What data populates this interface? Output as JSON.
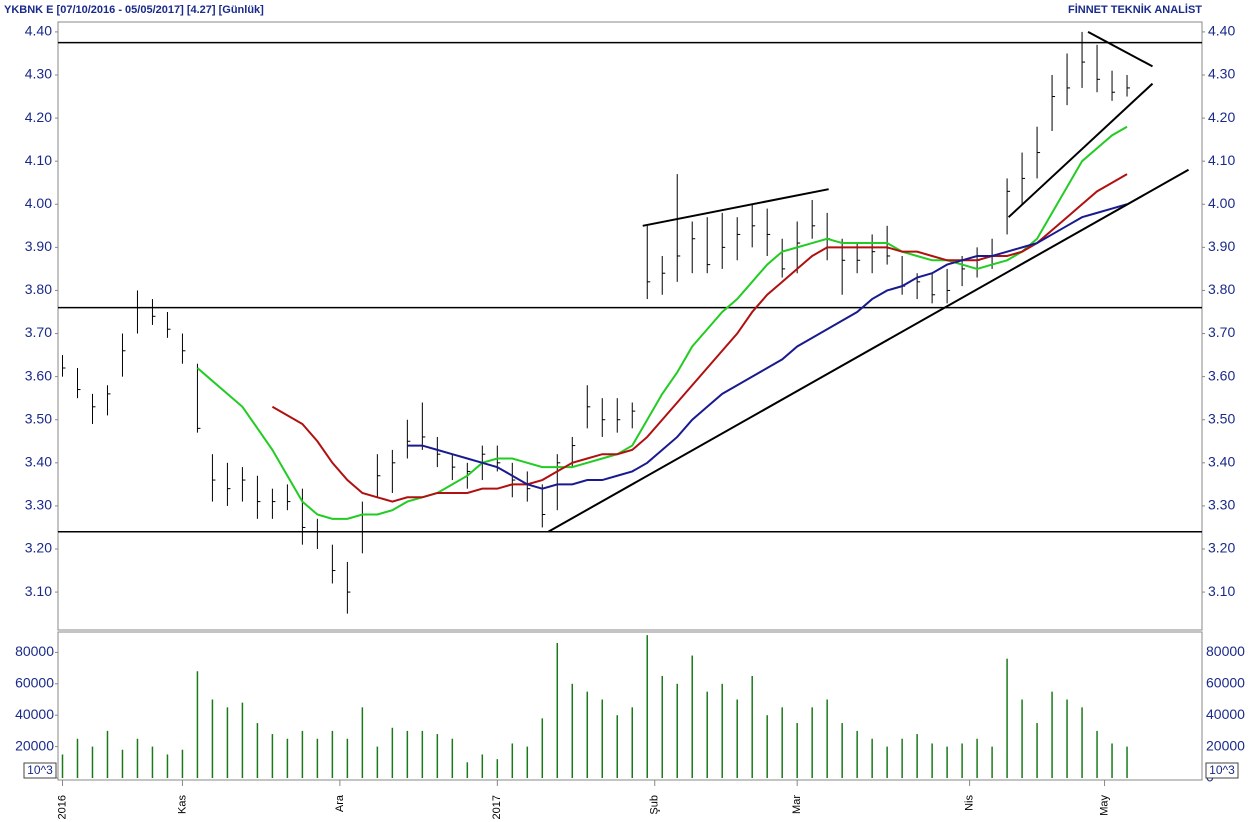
{
  "header": {
    "title": "YKBNK E [07/10/2016 - 05/05/2017] [4.27] [Günlük]",
    "source": "FİNNET TEKNİK ANALİST"
  },
  "chart_data": [
    {
      "type": "ohlc",
      "xlim": [
        -0.3,
        76
      ],
      "xticks": [
        {
          "value": 0,
          "label": "2016"
        },
        {
          "value": 8,
          "label": "Kas"
        },
        {
          "value": 18.5,
          "label": "Ara"
        },
        {
          "value": 29,
          "label": "2017"
        },
        {
          "value": 39.5,
          "label": "Şub"
        },
        {
          "value": 49,
          "label": "Mar"
        },
        {
          "value": 60.5,
          "label": "Nis"
        },
        {
          "value": 69.5,
          "label": "May"
        }
      ],
      "ylim": [
        3.012,
        4.423
      ],
      "yticks": [
        {
          "value": 3.1,
          "label": "3.10"
        },
        {
          "value": 3.2,
          "label": "3.20"
        },
        {
          "value": 3.3,
          "label": "3.30"
        },
        {
          "value": 3.4,
          "label": "3.40"
        },
        {
          "value": 3.5,
          "label": "3.50"
        },
        {
          "value": 3.6,
          "label": "3.60"
        },
        {
          "value": 3.7,
          "label": "3.70"
        },
        {
          "value": 3.8,
          "label": "3.80"
        },
        {
          "value": 3.9,
          "label": "3.90"
        },
        {
          "value": 4.0,
          "label": "4.00"
        },
        {
          "value": 4.1,
          "label": "4.10"
        },
        {
          "value": 4.2,
          "label": "4.20"
        },
        {
          "value": 4.3,
          "label": "4.30"
        },
        {
          "value": 4.4,
          "label": "4.40"
        }
      ],
      "bar_color": "#000000",
      "high": [
        3.65,
        3.62,
        3.56,
        3.58,
        3.7,
        3.8,
        3.78,
        3.75,
        3.7,
        3.63,
        3.42,
        3.4,
        3.39,
        3.37,
        3.34,
        3.35,
        3.34,
        3.27,
        3.21,
        3.17,
        3.31,
        3.42,
        3.43,
        3.5,
        3.54,
        3.46,
        3.42,
        3.4,
        3.44,
        3.44,
        3.4,
        3.38,
        3.35,
        3.42,
        3.46,
        3.58,
        3.55,
        3.55,
        3.54,
        3.95,
        3.88,
        4.07,
        3.96,
        3.97,
        3.98,
        3.97,
        4.0,
        3.99,
        3.92,
        3.96,
        4.01,
        3.98,
        3.92,
        3.91,
        3.93,
        3.95,
        3.88,
        3.84,
        3.84,
        3.85,
        3.88,
        3.9,
        3.92,
        4.06,
        4.12,
        4.18,
        4.3,
        4.35,
        4.4,
        4.37,
        4.31,
        4.3
      ],
      "low": [
        3.6,
        3.55,
        3.49,
        3.51,
        3.6,
        3.7,
        3.72,
        3.69,
        3.63,
        3.47,
        3.31,
        3.3,
        3.31,
        3.27,
        3.27,
        3.29,
        3.21,
        3.2,
        3.12,
        3.05,
        3.19,
        3.32,
        3.33,
        3.41,
        3.43,
        3.39,
        3.36,
        3.34,
        3.36,
        3.38,
        3.32,
        3.31,
        3.25,
        3.29,
        3.39,
        3.48,
        3.46,
        3.47,
        3.48,
        3.78,
        3.79,
        3.82,
        3.84,
        3.84,
        3.85,
        3.87,
        3.9,
        3.88,
        3.83,
        3.84,
        3.92,
        3.87,
        3.79,
        3.84,
        3.84,
        3.86,
        3.79,
        3.78,
        3.77,
        3.77,
        3.81,
        3.83,
        3.85,
        3.93,
        4.0,
        4.06,
        4.17,
        4.23,
        4.27,
        4.26,
        4.24,
        4.25
      ],
      "close": [
        3.62,
        3.57,
        3.53,
        3.56,
        3.66,
        3.76,
        3.74,
        3.71,
        3.66,
        3.48,
        3.36,
        3.34,
        3.36,
        3.31,
        3.31,
        3.31,
        3.25,
        3.24,
        3.15,
        3.1,
        3.28,
        3.37,
        3.4,
        3.45,
        3.46,
        3.42,
        3.39,
        3.38,
        3.42,
        3.4,
        3.36,
        3.34,
        3.28,
        3.4,
        3.44,
        3.53,
        3.5,
        3.5,
        3.52,
        3.82,
        3.84,
        3.88,
        3.92,
        3.86,
        3.9,
        3.93,
        3.95,
        3.93,
        3.85,
        3.91,
        3.95,
        3.92,
        3.87,
        3.87,
        3.89,
        3.88,
        3.81,
        3.82,
        3.79,
        3.8,
        3.85,
        3.87,
        3.88,
        4.03,
        4.06,
        4.12,
        4.25,
        4.27,
        4.33,
        4.29,
        4.26,
        4.27
      ],
      "series": [
        {
          "color": "#22cc22",
          "values": [
            null,
            null,
            null,
            null,
            null,
            null,
            null,
            null,
            null,
            3.62,
            3.59,
            3.56,
            3.53,
            3.48,
            3.43,
            3.37,
            3.31,
            3.28,
            3.27,
            3.27,
            3.28,
            3.28,
            3.29,
            3.31,
            3.32,
            3.33,
            3.35,
            3.37,
            3.4,
            3.41,
            3.41,
            3.4,
            3.39,
            3.39,
            3.39,
            3.4,
            3.41,
            3.42,
            3.44,
            3.5,
            3.56,
            3.61,
            3.67,
            3.71,
            3.75,
            3.78,
            3.82,
            3.86,
            3.89,
            3.9,
            3.91,
            3.92,
            3.91,
            3.91,
            3.91,
            3.91,
            3.89,
            3.88,
            3.87,
            3.87,
            3.86,
            3.85,
            3.86,
            3.87,
            3.89,
            3.92,
            3.98,
            4.04,
            4.1,
            4.13,
            4.16,
            4.18
          ]
        },
        {
          "color": "#b01010",
          "values": [
            null,
            null,
            null,
            null,
            null,
            null,
            null,
            null,
            null,
            null,
            null,
            null,
            null,
            null,
            3.53,
            3.51,
            3.49,
            3.45,
            3.4,
            3.36,
            3.33,
            3.32,
            3.31,
            3.32,
            3.32,
            3.33,
            3.33,
            3.33,
            3.34,
            3.34,
            3.35,
            3.35,
            3.36,
            3.38,
            3.4,
            3.41,
            3.42,
            3.42,
            3.43,
            3.46,
            3.5,
            3.54,
            3.58,
            3.62,
            3.66,
            3.7,
            3.75,
            3.79,
            3.82,
            3.85,
            3.88,
            3.9,
            3.9,
            3.9,
            3.9,
            3.9,
            3.89,
            3.89,
            3.88,
            3.87,
            3.87,
            3.87,
            3.88,
            3.88,
            3.89,
            3.91,
            3.94,
            3.97,
            4.0,
            4.03,
            4.05,
            4.07
          ]
        },
        {
          "color": "#1a1a90",
          "values": [
            null,
            null,
            null,
            null,
            null,
            null,
            null,
            null,
            null,
            null,
            null,
            null,
            null,
            null,
            null,
            null,
            null,
            null,
            null,
            null,
            null,
            null,
            null,
            3.44,
            3.44,
            3.43,
            3.42,
            3.41,
            3.4,
            3.39,
            3.37,
            3.35,
            3.34,
            3.35,
            3.35,
            3.36,
            3.36,
            3.37,
            3.38,
            3.4,
            3.43,
            3.46,
            3.5,
            3.53,
            3.56,
            3.58,
            3.6,
            3.62,
            3.64,
            3.67,
            3.69,
            3.71,
            3.73,
            3.75,
            3.78,
            3.8,
            3.81,
            3.83,
            3.84,
            3.86,
            3.87,
            3.88,
            3.88,
            3.89,
            3.9,
            3.91,
            3.93,
            3.95,
            3.97,
            3.98,
            3.99,
            4.0
          ]
        }
      ],
      "hlines": [
        4.375,
        3.76,
        3.24
      ],
      "trendlines": [
        {
          "x": [
            32.4,
            75.1
          ],
          "y": [
            3.24,
            4.08
          ]
        },
        {
          "x": [
            38.7,
            51.1
          ],
          "y": [
            3.95,
            4.035
          ]
        },
        {
          "x": [
            63.1,
            72.7
          ],
          "y": [
            3.97,
            4.28
          ]
        },
        {
          "x": [
            68.4,
            72.7
          ],
          "y": [
            4.4,
            4.32
          ]
        }
      ]
    },
    {
      "type": "volume",
      "xlim": [
        -0.3,
        76
      ],
      "ylim": [
        0,
        93000
      ],
      "yticks": [
        0,
        20000,
        40000,
        60000,
        80000
      ],
      "unit_label": "10^3",
      "color": "#1a7a1a",
      "values": [
        15000,
        25000,
        20000,
        30000,
        18000,
        25000,
        20000,
        15000,
        18000,
        68000,
        50000,
        45000,
        48000,
        35000,
        28000,
        25000,
        30000,
        25000,
        30000,
        25000,
        45000,
        20000,
        32000,
        30000,
        30000,
        28000,
        25000,
        10000,
        15000,
        12000,
        22000,
        20000,
        38000,
        86000,
        60000,
        55000,
        50000,
        40000,
        45000,
        91000,
        65000,
        60000,
        78000,
        55000,
        60000,
        50000,
        65000,
        40000,
        45000,
        35000,
        45000,
        50000,
        35000,
        30000,
        25000,
        20000,
        25000,
        28000,
        22000,
        20000,
        22000,
        25000,
        20000,
        76000,
        50000,
        35000,
        55000,
        50000,
        45000,
        30000,
        22000,
        20000
      ]
    }
  ]
}
